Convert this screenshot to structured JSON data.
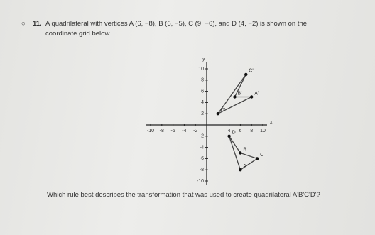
{
  "question": {
    "number": "11.",
    "line1": "A quadrilateral with vertices A (6, −8), B (6, −5), C (9, −6), and D (4, −2) is shown on the",
    "line2": "coordinate grid below."
  },
  "graph": {
    "x_label": "x",
    "y_label": "y",
    "xlim": [
      -10,
      10
    ],
    "ylim": [
      -10,
      10
    ],
    "xticks": [
      -10,
      -8,
      -6,
      -4,
      -2,
      4,
      6,
      8,
      10
    ],
    "yticks": [
      10,
      8,
      6,
      4,
      2,
      -2,
      -4,
      -6,
      -8,
      -10
    ],
    "shapes": [
      {
        "points": [
          {
            "label": "D",
            "x": 4,
            "y": -2
          },
          {
            "label": "B",
            "x": 6,
            "y": -5
          },
          {
            "label": "C",
            "x": 9,
            "y": -6
          },
          {
            "label": "A",
            "x": 6,
            "y": -8
          }
        ]
      },
      {
        "points": [
          {
            "label": "D'",
            "x": 2,
            "y": 2
          },
          {
            "label": "C'",
            "x": 7,
            "y": 9
          },
          {
            "label": "B'",
            "x": 5,
            "y": 5
          },
          {
            "label": "A'",
            "x": 8,
            "y": 5
          }
        ]
      }
    ]
  },
  "prompt": "Which rule best describes the transformation that was used to create quadrilateral A'B'C'D'?"
}
